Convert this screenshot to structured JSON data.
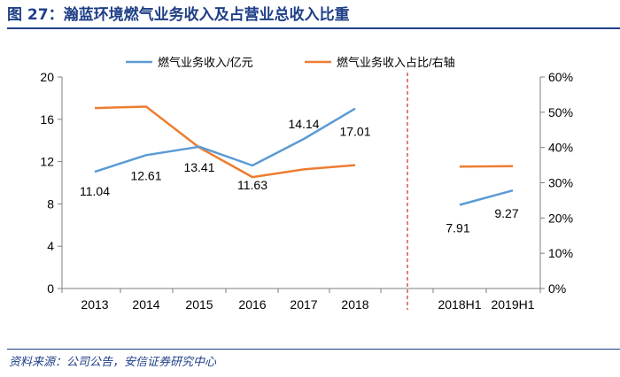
{
  "title": "图 27：瀚蓝环境燃气业务收入及占营业总收入比重",
  "source": "资料来源：公司公告，安信证券研究中心",
  "chart_data": {
    "type": "line",
    "categories": [
      "2013",
      "2014",
      "2015",
      "2016",
      "2017",
      "2018",
      "2018H1",
      "2019H1"
    ],
    "series": [
      {
        "name": "燃气业务收入/亿元",
        "axis": "left",
        "color": "#5b9bd5",
        "segments": [
          {
            "x": [
              "2013",
              "2014",
              "2015",
              "2016",
              "2017",
              "2018"
            ],
            "values": [
              11.04,
              12.61,
              13.41,
              11.63,
              14.14,
              17.01
            ]
          },
          {
            "x": [
              "2018H1",
              "2019H1"
            ],
            "values": [
              7.91,
              9.27
            ]
          }
        ],
        "data_labels": [
          "11.04",
          "12.61",
          "13.41",
          "11.63",
          "14.14",
          "17.01",
          "7.91",
          "9.27"
        ]
      },
      {
        "name": "燃气业务收入占比/右轴",
        "axis": "right",
        "color": "#ed7d31",
        "segments": [
          {
            "x": [
              "2013",
              "2014",
              "2015",
              "2016",
              "2017",
              "2018"
            ],
            "values": [
              51.2,
              51.6,
              40.0,
              31.6,
              33.8,
              35.0
            ]
          },
          {
            "x": [
              "2018H1",
              "2019H1"
            ],
            "values": [
              34.6,
              34.7
            ]
          }
        ]
      }
    ],
    "y_left": {
      "min": 0,
      "max": 20,
      "ticks": [
        0,
        4,
        8,
        12,
        16,
        20
      ]
    },
    "y_right": {
      "min": 0,
      "max": 60,
      "ticks": [
        0,
        10,
        20,
        30,
        40,
        50,
        60
      ],
      "tick_labels": [
        "0%",
        "10%",
        "20%",
        "30%",
        "40%",
        "50%",
        "60%"
      ]
    },
    "separator": "dashed vertical line between 2018 and 2018H1",
    "separator_color": "#c00000",
    "legend_position": "top",
    "grid": false
  }
}
